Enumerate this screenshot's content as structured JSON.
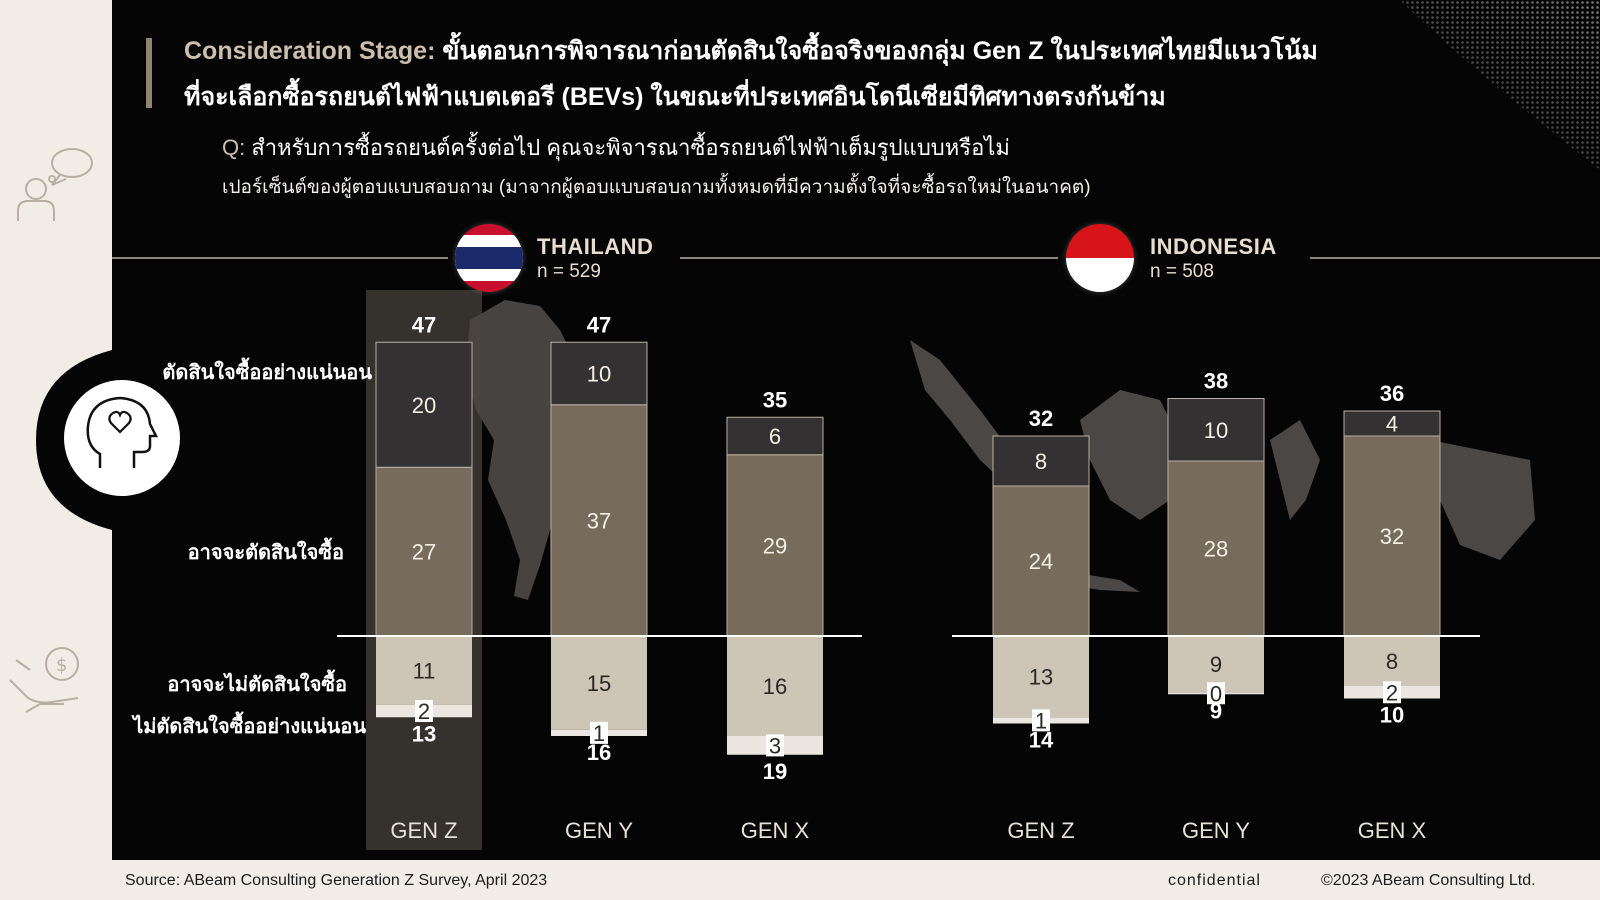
{
  "header": {
    "title_lead": "Consideration Stage:",
    "title_line1_rest": " ขั้นตอนการพิจารณาก่อนตัดสินใจซื้อจริงของกลุ่ม Gen Z ในประเทศไทยมีแนวโน้ม",
    "title_line2": "ที่จะเลือกซื้อรถยนต์ไฟฟ้าแบตเตอรี (BEVs) ในขณะที่ประเทศอินโดนีเซียมีทิศทางตรงกันข้าม",
    "question_prefix": "Q:",
    "question_text": " สำหรับการซื้อรถยนต์ครั้งต่อไป คุณจะพิจารณาซื้อรถยนต์ไฟฟ้าเต็มรูปแบบหรือไม่",
    "subtext": "เปอร์เซ็นต์ของผู้ตอบแบบสอบถาม (มาจากผู้ตอบแบบสอบถามทั้งหมดที่มีความตั้งใจที่จะซื้อรถใหม่ในอนาคต)"
  },
  "row_labels": {
    "definitely": "ตัดสินใจซื้ออย่างแน่นอน",
    "probably": "อาจจะตัดสินใจซื้อ",
    "probably_not": "อาจจะไม่ตัดสินใจซื้อ",
    "definitely_not": "ไม่ตัดสินใจซื้ออย่างแน่นอน"
  },
  "footer": {
    "source": "Source: ABeam Consulting Generation Z Survey, April 2023",
    "confidential": "confidential",
    "copyright": "©2023 ABeam Consulting Ltd."
  },
  "colors": {
    "definitely": "#333131",
    "probably": "#776b5c",
    "probably_not": "#cdc5b6",
    "definitely_not": "#ebe7e0",
    "highlight": "#4a443d"
  },
  "icons": [
    "person-speech-icon",
    "head-heart-icon",
    "hand-money-icon",
    "thailand-flag-icon",
    "indonesia-flag-icon"
  ],
  "chart_data": [
    {
      "type": "bar",
      "country": "THAILAND",
      "sample": "n = 529",
      "highlight": "GEN Z",
      "categories": [
        "GEN Z",
        "GEN Y",
        "GEN X"
      ],
      "positive_total": [
        47,
        47,
        35
      ],
      "negative_total": [
        13,
        16,
        19
      ],
      "series": [
        {
          "name": "ตัดสินใจซื้ออย่างแน่นอน",
          "values": [
            20,
            10,
            6
          ]
        },
        {
          "name": "อาจจะตัดสินใจซื้อ",
          "values": [
            27,
            37,
            29
          ]
        },
        {
          "name": "อาจจะไม่ตัดสินใจซื้อ",
          "values": [
            11,
            15,
            16
          ]
        },
        {
          "name": "ไม่ตัดสินใจซื้ออย่างแน่นอน",
          "values": [
            2,
            1,
            3
          ]
        }
      ]
    },
    {
      "type": "bar",
      "country": "INDONESIA",
      "sample": "n = 508",
      "categories": [
        "GEN Z",
        "GEN Y",
        "GEN X"
      ],
      "positive_total": [
        32,
        38,
        36
      ],
      "negative_total": [
        14,
        9,
        10
      ],
      "series": [
        {
          "name": "ตัดสินใจซื้ออย่างแน่นอน",
          "values": [
            8,
            10,
            4
          ]
        },
        {
          "name": "อาจจะตัดสินใจซื้อ",
          "values": [
            24,
            28,
            32
          ]
        },
        {
          "name": "อาจจะไม่ตัดสินใจซื้อ",
          "values": [
            13,
            9,
            8
          ]
        },
        {
          "name": "ไม่ตัดสินใจซื้ออย่างแน่นอน",
          "values": [
            1,
            0,
            2
          ]
        }
      ]
    }
  ]
}
